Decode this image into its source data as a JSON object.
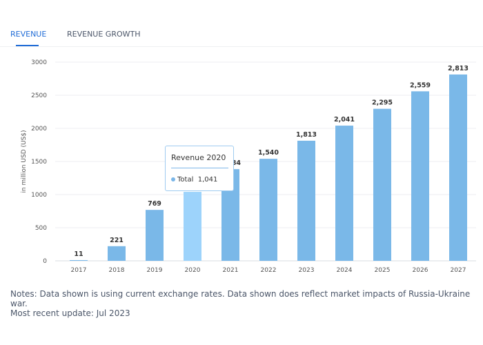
{
  "tabs": [
    {
      "label": "REVENUE",
      "active": true
    },
    {
      "label": "REVENUE GROWTH",
      "active": false
    }
  ],
  "chart_data": {
    "type": "bar",
    "categories": [
      "2017",
      "2018",
      "2019",
      "2020",
      "2021",
      "2022",
      "2023",
      "2024",
      "2025",
      "2026",
      "2027"
    ],
    "values": [
      11,
      221,
      769,
      1041,
      1384,
      1540,
      1813,
      2041,
      2295,
      2559,
      2813
    ],
    "data_labels": [
      "11",
      "221",
      "769",
      "1,041",
      "1,384",
      "1,540",
      "1,813",
      "2,041",
      "2,295",
      "2,559",
      "2,813"
    ],
    "ylabel": "in million USD (US$)",
    "ylim": [
      0,
      3000
    ],
    "yticks": [
      0,
      500,
      1000,
      1500,
      2000,
      2500,
      3000
    ],
    "grid": true,
    "colors": {
      "bar": "#7ab8e8",
      "highlight": "#9dd3fb"
    },
    "highlighted_category": "2020"
  },
  "tooltip": {
    "title": "Revenue 2020",
    "series": "Total",
    "value": "1,041"
  },
  "notes": "Notes: Data shown is using current exchange rates. Data shown does reflect market impacts of Russia-Ukraine war.",
  "update": "Most recent update: Jul 2023"
}
